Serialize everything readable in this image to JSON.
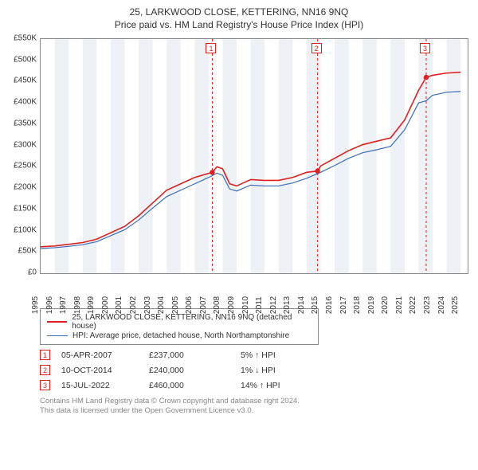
{
  "title1": "25, LARKWOOD CLOSE, KETTERING, NN16 9NQ",
  "title2": "Price paid vs. HM Land Registry's House Price Index (HPI)",
  "chart": {
    "type": "line",
    "x_range": [
      1995,
      2025.5
    ],
    "y_range": [
      0,
      550
    ],
    "y_ticks": [
      0,
      50,
      100,
      150,
      200,
      250,
      300,
      350,
      400,
      450,
      500,
      550
    ],
    "y_tick_labels": [
      "£0",
      "£50K",
      "£100K",
      "£150K",
      "£200K",
      "£250K",
      "£300K",
      "£350K",
      "£400K",
      "£450K",
      "£500K",
      "£550K"
    ],
    "x_ticks": [
      1995,
      1996,
      1997,
      1998,
      1999,
      2000,
      2001,
      2002,
      2003,
      2004,
      2005,
      2006,
      2007,
      2008,
      2009,
      2010,
      2011,
      2012,
      2013,
      2014,
      2015,
      2016,
      2017,
      2018,
      2019,
      2020,
      2021,
      2022,
      2023,
      2024,
      2025
    ],
    "alt_band_color": "#eef1f6",
    "grid_color": "none",
    "background_color": "#ffffff",
    "series_red": {
      "name": "25, LARKWOOD CLOSE, KETTERING, NN16 9NQ (detached house)",
      "color": "#e02020",
      "width": 1.6,
      "points": [
        [
          1995,
          62
        ],
        [
          1996,
          64
        ],
        [
          1997,
          68
        ],
        [
          1998,
          72
        ],
        [
          1999,
          80
        ],
        [
          2000,
          95
        ],
        [
          2001,
          110
        ],
        [
          2002,
          135
        ],
        [
          2003,
          165
        ],
        [
          2004,
          195
        ],
        [
          2005,
          210
        ],
        [
          2006,
          225
        ],
        [
          2007.26,
          237
        ],
        [
          2007.6,
          250
        ],
        [
          2008,
          245
        ],
        [
          2008.5,
          210
        ],
        [
          2009,
          205
        ],
        [
          2010,
          220
        ],
        [
          2011,
          218
        ],
        [
          2012,
          218
        ],
        [
          2013,
          225
        ],
        [
          2014,
          237
        ],
        [
          2014.78,
          240
        ],
        [
          2015,
          252
        ],
        [
          2016,
          270
        ],
        [
          2017,
          288
        ],
        [
          2018,
          302
        ],
        [
          2019,
          310
        ],
        [
          2020,
          318
        ],
        [
          2021,
          360
        ],
        [
          2022,
          430
        ],
        [
          2022.54,
          460
        ],
        [
          2023,
          465
        ],
        [
          2024,
          470
        ],
        [
          2025,
          472
        ]
      ]
    },
    "series_blue": {
      "name": "HPI: Average price, detached house, North Northamptonshire",
      "color": "#3b6db5",
      "width": 1.2,
      "points": [
        [
          1995,
          58
        ],
        [
          1996,
          60
        ],
        [
          1997,
          63
        ],
        [
          1998,
          67
        ],
        [
          1999,
          74
        ],
        [
          2000,
          88
        ],
        [
          2001,
          102
        ],
        [
          2002,
          125
        ],
        [
          2003,
          153
        ],
        [
          2004,
          180
        ],
        [
          2005,
          195
        ],
        [
          2006,
          210
        ],
        [
          2007,
          225
        ],
        [
          2007.6,
          235
        ],
        [
          2008,
          230
        ],
        [
          2008.5,
          198
        ],
        [
          2009,
          193
        ],
        [
          2010,
          207
        ],
        [
          2011,
          205
        ],
        [
          2012,
          205
        ],
        [
          2013,
          212
        ],
        [
          2014,
          223
        ],
        [
          2015,
          237
        ],
        [
          2016,
          253
        ],
        [
          2017,
          270
        ],
        [
          2018,
          283
        ],
        [
          2019,
          290
        ],
        [
          2020,
          298
        ],
        [
          2021,
          337
        ],
        [
          2022,
          400
        ],
        [
          2022.54,
          405
        ],
        [
          2023,
          418
        ],
        [
          2024,
          425
        ],
        [
          2025,
          427
        ]
      ]
    },
    "sale_markers": [
      {
        "n": "1",
        "x": 2007.26,
        "y": 237,
        "dash_color": "#e02020"
      },
      {
        "n": "2",
        "x": 2014.78,
        "y": 240,
        "dash_color": "#e02020"
      },
      {
        "n": "3",
        "x": 2022.54,
        "y": 460,
        "dash_color": "#e02020"
      }
    ],
    "marker_dot_radius": 3.2
  },
  "legend": {
    "items": [
      {
        "key": "series_red"
      },
      {
        "key": "series_blue"
      }
    ]
  },
  "sales_table": [
    {
      "n": "1",
      "date": "05-APR-2007",
      "price": "£237,000",
      "delta": "5% ↑ HPI"
    },
    {
      "n": "2",
      "date": "10-OCT-2014",
      "price": "£240,000",
      "delta": "1% ↓ HPI"
    },
    {
      "n": "3",
      "date": "15-JUL-2022",
      "price": "£460,000",
      "delta": "14% ↑ HPI"
    }
  ],
  "footer1": "Contains HM Land Registry data © Crown copyright and database right 2024.",
  "footer2": "This data is licensed under the Open Government Licence v3.0."
}
